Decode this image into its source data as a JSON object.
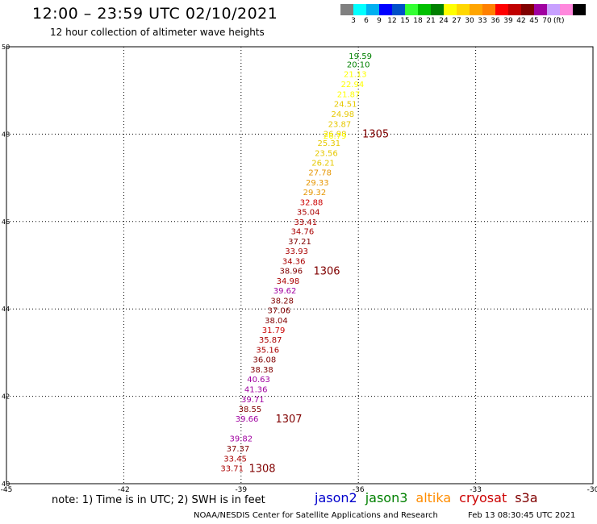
{
  "header": {
    "title": "12:00 – 23:59 UTC 02/10/2021",
    "subtitle": "12 hour collection of altimeter wave heights"
  },
  "colorbar": {
    "colors": [
      "#808080",
      "#00ffff",
      "#00b0f0",
      "#0000ff",
      "#0050c8",
      "#33ff33",
      "#00c000",
      "#008000",
      "#ffff00",
      "#ffd700",
      "#ffa500",
      "#ff8000",
      "#ff0000",
      "#c00000",
      "#800000",
      "#a000a0",
      "#c8a0ff",
      "#ff88dd",
      "#000000"
    ],
    "labels": [
      "3",
      "6",
      "9",
      "12",
      "15",
      "18",
      "21",
      "24",
      "27",
      "30",
      "33",
      "36",
      "39",
      "42",
      "45",
      "70"
    ],
    "unit": "(ft)"
  },
  "chart_data": {
    "type": "scatter",
    "xlim": [
      -45,
      -30
    ],
    "ylim": [
      40,
      50
    ],
    "x_ticks": [
      "-45",
      "-42",
      "-39",
      "-36",
      "-33",
      "-30"
    ],
    "y_ticks": [
      "40",
      "42",
      "44",
      "46",
      "48",
      "50"
    ],
    "x_tick_values": [
      -45,
      -42,
      -39,
      -36,
      -33,
      -30
    ],
    "y_tick_values": [
      40,
      42,
      44,
      46,
      48,
      50
    ],
    "grid": true,
    "points": [
      {
        "lon": -35.95,
        "lat": 49.8,
        "label": "19.59",
        "color": "#008000"
      },
      {
        "lon": -36.0,
        "lat": 49.6,
        "label": "20.10",
        "color": "#008000"
      },
      {
        "lon": -36.08,
        "lat": 49.38,
        "label": "21.13",
        "color": "#ffff00"
      },
      {
        "lon": -36.15,
        "lat": 49.15,
        "label": "22.94",
        "color": "#ffff00"
      },
      {
        "lon": -36.25,
        "lat": 48.92,
        "label": "21.87",
        "color": "#ffff00"
      },
      {
        "lon": -36.33,
        "lat": 48.7,
        "label": "24.51",
        "color": "#e6c800"
      },
      {
        "lon": -36.4,
        "lat": 48.47,
        "label": "24.98",
        "color": "#e6c800"
      },
      {
        "lon": -36.48,
        "lat": 48.24,
        "label": "23.87",
        "color": "#e6c800"
      },
      {
        "lon": -36.6,
        "lat": 48.02,
        "label": "26.98",
        "color": "#e6c800"
      },
      {
        "lon": -36.6,
        "lat": 47.97,
        "label": "26.79",
        "color": "#ffff00"
      },
      {
        "lon": -36.75,
        "lat": 47.8,
        "label": "25.31",
        "color": "#e6c800"
      },
      {
        "lon": -36.82,
        "lat": 47.57,
        "label": "23.56",
        "color": "#e6c800"
      },
      {
        "lon": -36.9,
        "lat": 47.35,
        "label": "26.21",
        "color": "#e6c800"
      },
      {
        "lon": -36.98,
        "lat": 47.13,
        "label": "27.78",
        "color": "#e69500"
      },
      {
        "lon": -37.05,
        "lat": 46.9,
        "label": "29.33",
        "color": "#e69500"
      },
      {
        "lon": -37.12,
        "lat": 46.68,
        "label": "29.32",
        "color": "#e69500"
      },
      {
        "lon": -37.2,
        "lat": 46.45,
        "label": "32.88",
        "color": "#cc0000"
      },
      {
        "lon": -37.28,
        "lat": 46.23,
        "label": "35.04",
        "color": "#aa0000"
      },
      {
        "lon": -37.35,
        "lat": 46.0,
        "label": "33.41",
        "color": "#aa0000"
      },
      {
        "lon": -37.43,
        "lat": 45.78,
        "label": "34.76",
        "color": "#aa0000"
      },
      {
        "lon": -37.5,
        "lat": 45.55,
        "label": "37.21",
        "color": "#800000"
      },
      {
        "lon": -37.58,
        "lat": 45.33,
        "label": "33.93",
        "color": "#aa0000"
      },
      {
        "lon": -37.65,
        "lat": 45.1,
        "label": "34.36",
        "color": "#aa0000"
      },
      {
        "lon": -37.72,
        "lat": 44.88,
        "label": "38.96",
        "color": "#800000"
      },
      {
        "lon": -37.8,
        "lat": 44.65,
        "label": "34.98",
        "color": "#aa0000"
      },
      {
        "lon": -37.88,
        "lat": 44.43,
        "label": "39.62",
        "color": "#a000a0"
      },
      {
        "lon": -37.95,
        "lat": 44.2,
        "label": "38.28",
        "color": "#800000"
      },
      {
        "lon": -38.03,
        "lat": 43.98,
        "label": "37.06",
        "color": "#800000"
      },
      {
        "lon": -38.1,
        "lat": 43.75,
        "label": "38.04",
        "color": "#800000"
      },
      {
        "lon": -38.17,
        "lat": 43.52,
        "label": "31.79",
        "color": "#cc0000"
      },
      {
        "lon": -38.25,
        "lat": 43.3,
        "label": "35.87",
        "color": "#aa0000"
      },
      {
        "lon": -38.32,
        "lat": 43.07,
        "label": "35.16",
        "color": "#aa0000"
      },
      {
        "lon": -38.4,
        "lat": 42.85,
        "label": "36.08",
        "color": "#800000"
      },
      {
        "lon": -38.47,
        "lat": 42.62,
        "label": "38.38",
        "color": "#800000"
      },
      {
        "lon": -38.55,
        "lat": 42.4,
        "label": "40.63",
        "color": "#a000a0"
      },
      {
        "lon": -38.62,
        "lat": 42.17,
        "label": "41.36",
        "color": "#a000a0"
      },
      {
        "lon": -38.7,
        "lat": 41.94,
        "label": "39.71",
        "color": "#a000a0"
      },
      {
        "lon": -38.77,
        "lat": 41.72,
        "label": "38.55",
        "color": "#800000"
      },
      {
        "lon": -38.85,
        "lat": 41.49,
        "label": "39.66",
        "color": "#a000a0"
      },
      {
        "lon": -39.0,
        "lat": 41.04,
        "label": "39.82",
        "color": "#a000a0"
      },
      {
        "lon": -39.08,
        "lat": 40.81,
        "label": "37.37",
        "color": "#800000"
      },
      {
        "lon": -39.15,
        "lat": 40.58,
        "label": "33.45",
        "color": "#aa0000"
      },
      {
        "lon": -39.23,
        "lat": 40.36,
        "label": "33.71",
        "color": "#aa0000"
      }
    ],
    "annotations": [
      {
        "lon": -35.9,
        "lat": 48.02,
        "text": "1305",
        "color": "#800000"
      },
      {
        "lon": -37.15,
        "lat": 44.88,
        "text": "1306",
        "color": "#800000"
      },
      {
        "lon": -38.12,
        "lat": 41.49,
        "text": "1307",
        "color": "#800000"
      },
      {
        "lon": -38.8,
        "lat": 40.36,
        "text": "1308",
        "color": "#800000"
      }
    ]
  },
  "note": "note:  1) Time is in UTC;  2) SWH is in feet",
  "legend": [
    {
      "label": "jason2",
      "color": "#0000cc"
    },
    {
      "label": "jason3",
      "color": "#008000"
    },
    {
      "label": "altika",
      "color": "#ff8c00"
    },
    {
      "label": "cryosat",
      "color": "#cc0000"
    },
    {
      "label": "s3a",
      "color": "#800000"
    }
  ],
  "footer": "NOAA/NESDIS Center for Satellite Applications and Research",
  "timestamp": "Feb 13 08:30:45 UTC 2021"
}
